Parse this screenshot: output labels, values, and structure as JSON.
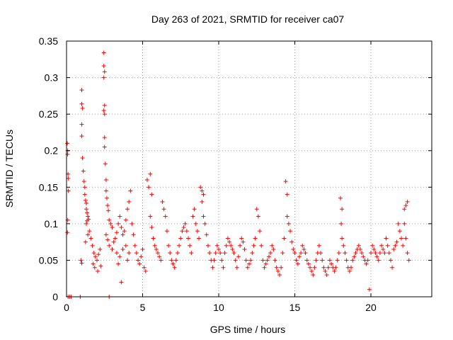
{
  "chart_data": {
    "type": "scatter",
    "title": "Day 263 of 2021, SRMTID for receiver ca07",
    "xlabel": "GPS time / hours",
    "ylabel": "SRMTID / TECUs",
    "xlim": [
      0,
      24
    ],
    "ylim": [
      0,
      0.35
    ],
    "grid": true,
    "marker": "+",
    "color": "#ff0000",
    "xticks": [
      0,
      5,
      10,
      15,
      20
    ],
    "xtick_labels": [
      "0",
      "5",
      "10",
      "15",
      "20"
    ],
    "yticks": [
      0,
      0.05,
      0.1,
      0.15,
      0.2,
      0.25,
      0.3,
      0.35
    ],
    "ytick_labels": [
      "0",
      "0.05",
      "0.1",
      "0.15",
      "0.2",
      "0.25",
      "0.3",
      "0.35"
    ],
    "series": [
      {
        "name": "SRMTID",
        "points": [
          [
            0.05,
            0.21
          ],
          [
            0.07,
            0.195
          ],
          [
            0.08,
            0.2
          ],
          [
            0.1,
            0.168
          ],
          [
            0.11,
            0.162
          ],
          [
            0.12,
            0.145
          ],
          [
            0.08,
            0.105
          ],
          [
            0.06,
            0.088
          ],
          [
            0.1,
            0.0
          ],
          [
            0.2,
            0.0
          ],
          [
            0.3,
            0.0
          ],
          [
            0.9,
            0.0
          ],
          [
            2.8,
            0.0
          ],
          [
            1.0,
            0.283
          ],
          [
            1.0,
            0.264
          ],
          [
            1.05,
            0.258
          ],
          [
            1.0,
            0.236
          ],
          [
            1.0,
            0.22
          ],
          [
            1.05,
            0.19
          ],
          [
            1.1,
            0.172
          ],
          [
            1.15,
            0.158
          ],
          [
            1.2,
            0.15
          ],
          [
            1.2,
            0.14
          ],
          [
            1.25,
            0.132
          ],
          [
            1.3,
            0.128
          ],
          [
            1.3,
            0.12
          ],
          [
            1.35,
            0.115
          ],
          [
            1.4,
            0.11
          ],
          [
            1.45,
            0.106
          ],
          [
            1.3,
            0.1
          ],
          [
            1.35,
            0.104
          ],
          [
            1.5,
            0.09
          ],
          [
            1.4,
            0.085
          ],
          [
            1.25,
            0.075
          ],
          [
            0.95,
            0.05
          ],
          [
            1.0,
            0.046
          ],
          [
            1.6,
            0.08
          ],
          [
            1.7,
            0.07
          ],
          [
            1.8,
            0.06
          ],
          [
            1.9,
            0.055
          ],
          [
            2.0,
            0.05
          ],
          [
            2.1,
            0.058
          ],
          [
            2.2,
            0.065
          ],
          [
            1.75,
            0.045
          ],
          [
            1.85,
            0.04
          ],
          [
            2.05,
            0.035
          ],
          [
            2.25,
            0.042
          ],
          [
            2.45,
            0.334
          ],
          [
            2.45,
            0.316
          ],
          [
            2.5,
            0.308
          ],
          [
            2.45,
            0.3
          ],
          [
            2.5,
            0.262
          ],
          [
            2.45,
            0.255
          ],
          [
            2.5,
            0.25
          ],
          [
            2.5,
            0.218
          ],
          [
            2.5,
            0.205
          ],
          [
            2.55,
            0.182
          ],
          [
            2.6,
            0.16
          ],
          [
            2.6,
            0.145
          ],
          [
            2.65,
            0.135
          ],
          [
            2.7,
            0.125
          ],
          [
            2.75,
            0.118
          ],
          [
            2.8,
            0.105
          ],
          [
            2.9,
            0.1
          ],
          [
            3.0,
            0.095
          ],
          [
            2.6,
            0.085
          ],
          [
            2.7,
            0.078
          ],
          [
            2.8,
            0.07
          ],
          [
            3.0,
            0.065
          ],
          [
            3.1,
            0.075
          ],
          [
            3.2,
            0.08
          ],
          [
            3.3,
            0.088
          ],
          [
            3.4,
            0.1
          ],
          [
            3.5,
            0.11
          ],
          [
            3.6,
            0.095
          ],
          [
            3.7,
            0.085
          ],
          [
            3.8,
            0.09
          ],
          [
            3.9,
            0.105
          ],
          [
            4.0,
            0.12
          ],
          [
            4.1,
            0.13
          ],
          [
            4.2,
            0.145
          ],
          [
            4.3,
            0.1
          ],
          [
            4.4,
            0.085
          ],
          [
            4.5,
            0.07
          ],
          [
            3.3,
            0.06
          ],
          [
            3.5,
            0.055
          ],
          [
            3.7,
            0.065
          ],
          [
            3.9,
            0.07
          ],
          [
            4.1,
            0.06
          ],
          [
            3.6,
            0.02
          ],
          [
            3.4,
            0.045
          ],
          [
            4.0,
            0.05
          ],
          [
            4.6,
            0.06
          ],
          [
            4.7,
            0.05
          ],
          [
            4.8,
            0.045
          ],
          [
            4.9,
            0.055
          ],
          [
            5.0,
            0.065
          ],
          [
            5.1,
            0.04
          ],
          [
            5.2,
            0.035
          ],
          [
            5.3,
            0.16
          ],
          [
            5.5,
            0.168
          ],
          [
            5.4,
            0.15
          ],
          [
            5.6,
            0.14
          ],
          [
            5.5,
            0.11
          ],
          [
            5.6,
            0.095
          ],
          [
            5.7,
            0.08
          ],
          [
            5.8,
            0.07
          ],
          [
            5.9,
            0.065
          ],
          [
            6.0,
            0.06
          ],
          [
            6.1,
            0.055
          ],
          [
            6.2,
            0.05
          ],
          [
            6.3,
            0.13
          ],
          [
            6.4,
            0.12
          ],
          [
            6.5,
            0.11
          ],
          [
            6.6,
            0.09
          ],
          [
            6.7,
            0.07
          ],
          [
            6.8,
            0.06
          ],
          [
            6.9,
            0.05
          ],
          [
            7.0,
            0.045
          ],
          [
            7.1,
            0.04
          ],
          [
            7.2,
            0.05
          ],
          [
            7.3,
            0.06
          ],
          [
            7.4,
            0.07
          ],
          [
            7.5,
            0.08
          ],
          [
            7.6,
            0.09
          ],
          [
            7.7,
            0.095
          ],
          [
            7.8,
            0.1
          ],
          [
            7.9,
            0.09
          ],
          [
            8.0,
            0.08
          ],
          [
            8.1,
            0.07
          ],
          [
            8.2,
            0.06
          ],
          [
            8.3,
            0.11
          ],
          [
            8.4,
            0.12
          ],
          [
            8.5,
            0.1
          ],
          [
            8.6,
            0.09
          ],
          [
            8.7,
            0.08
          ],
          [
            8.8,
            0.15
          ],
          [
            8.9,
            0.145
          ],
          [
            9.0,
            0.14
          ],
          [
            8.9,
            0.13
          ],
          [
            9.0,
            0.11
          ],
          [
            9.1,
            0.1
          ],
          [
            9.2,
            0.085
          ],
          [
            9.3,
            0.07
          ],
          [
            9.4,
            0.06
          ],
          [
            9.5,
            0.05
          ],
          [
            9.6,
            0.04
          ],
          [
            9.7,
            0.05
          ],
          [
            9.8,
            0.06
          ],
          [
            9.9,
            0.07
          ],
          [
            10.0,
            0.065
          ],
          [
            10.1,
            0.06
          ],
          [
            10.2,
            0.05
          ],
          [
            10.3,
            0.04
          ],
          [
            10.4,
            0.06
          ],
          [
            10.5,
            0.07
          ],
          [
            10.6,
            0.08
          ],
          [
            10.7,
            0.075
          ],
          [
            10.8,
            0.07
          ],
          [
            10.9,
            0.065
          ],
          [
            11.0,
            0.06
          ],
          [
            11.1,
            0.05
          ],
          [
            11.2,
            0.04
          ],
          [
            11.3,
            0.055
          ],
          [
            11.4,
            0.07
          ],
          [
            11.5,
            0.08
          ],
          [
            11.6,
            0.075
          ],
          [
            11.7,
            0.065
          ],
          [
            11.8,
            0.05
          ],
          [
            11.9,
            0.04
          ],
          [
            12.0,
            0.045
          ],
          [
            12.1,
            0.05
          ],
          [
            12.2,
            0.06
          ],
          [
            12.3,
            0.07
          ],
          [
            12.4,
            0.08
          ],
          [
            12.5,
            0.12
          ],
          [
            12.6,
            0.11
          ],
          [
            12.7,
            0.09
          ],
          [
            12.8,
            0.07
          ],
          [
            12.9,
            0.05
          ],
          [
            13.0,
            0.04
          ],
          [
            13.1,
            0.045
          ],
          [
            13.2,
            0.05
          ],
          [
            13.3,
            0.055
          ],
          [
            13.4,
            0.06
          ],
          [
            13.5,
            0.07
          ],
          [
            13.6,
            0.065
          ],
          [
            13.7,
            0.05
          ],
          [
            13.8,
            0.04
          ],
          [
            13.9,
            0.035
          ],
          [
            14.0,
            0.03
          ],
          [
            14.1,
            0.04
          ],
          [
            14.2,
            0.06
          ],
          [
            14.3,
            0.08
          ],
          [
            14.4,
            0.158
          ],
          [
            14.5,
            0.14
          ],
          [
            14.5,
            0.11
          ],
          [
            14.6,
            0.1
          ],
          [
            14.7,
            0.09
          ],
          [
            14.8,
            0.075
          ],
          [
            14.9,
            0.065
          ],
          [
            15.0,
            0.06
          ],
          [
            15.1,
            0.05
          ],
          [
            15.2,
            0.045
          ],
          [
            15.3,
            0.055
          ],
          [
            15.4,
            0.06
          ],
          [
            15.5,
            0.07
          ],
          [
            15.6,
            0.065
          ],
          [
            15.7,
            0.06
          ],
          [
            15.8,
            0.05
          ],
          [
            15.9,
            0.045
          ],
          [
            16.0,
            0.04
          ],
          [
            16.1,
            0.035
          ],
          [
            16.2,
            0.03
          ],
          [
            16.3,
            0.04
          ],
          [
            16.4,
            0.05
          ],
          [
            16.5,
            0.06
          ],
          [
            16.6,
            0.07
          ],
          [
            16.7,
            0.06
          ],
          [
            16.8,
            0.05
          ],
          [
            16.9,
            0.04
          ],
          [
            17.0,
            0.035
          ],
          [
            17.1,
            0.03
          ],
          [
            17.2,
            0.04
          ],
          [
            17.3,
            0.05
          ],
          [
            17.4,
            0.045
          ],
          [
            17.5,
            0.04
          ],
          [
            17.6,
            0.035
          ],
          [
            17.7,
            0.04
          ],
          [
            17.8,
            0.05
          ],
          [
            17.9,
            0.06
          ],
          [
            18.0,
            0.135
          ],
          [
            18.1,
            0.12
          ],
          [
            18.05,
            0.1
          ],
          [
            18.1,
            0.08
          ],
          [
            18.2,
            0.07
          ],
          [
            18.3,
            0.06
          ],
          [
            18.4,
            0.05
          ],
          [
            18.5,
            0.04
          ],
          [
            18.6,
            0.035
          ],
          [
            18.7,
            0.04
          ],
          [
            18.8,
            0.05
          ],
          [
            18.9,
            0.055
          ],
          [
            19.0,
            0.06
          ],
          [
            19.1,
            0.065
          ],
          [
            19.2,
            0.07
          ],
          [
            19.3,
            0.065
          ],
          [
            19.4,
            0.06
          ],
          [
            19.5,
            0.055
          ],
          [
            19.6,
            0.05
          ],
          [
            19.7,
            0.045
          ],
          [
            19.8,
            0.05
          ],
          [
            19.9,
            0.01
          ],
          [
            20.0,
            0.06
          ],
          [
            20.1,
            0.07
          ],
          [
            20.2,
            0.065
          ],
          [
            20.3,
            0.06
          ],
          [
            20.4,
            0.055
          ],
          [
            20.5,
            0.05
          ],
          [
            20.6,
            0.06
          ],
          [
            20.7,
            0.07
          ],
          [
            20.8,
            0.065
          ],
          [
            20.9,
            0.06
          ],
          [
            21.0,
            0.08
          ],
          [
            21.1,
            0.07
          ],
          [
            21.2,
            0.06
          ],
          [
            21.3,
            0.05
          ],
          [
            21.4,
            0.04
          ],
          [
            21.5,
            0.065
          ],
          [
            21.6,
            0.07
          ],
          [
            21.7,
            0.075
          ],
          [
            21.8,
            0.1
          ],
          [
            21.9,
            0.09
          ],
          [
            22.0,
            0.08
          ],
          [
            22.1,
            0.07
          ],
          [
            22.2,
            0.12
          ],
          [
            22.3,
            0.125
          ],
          [
            22.4,
            0.13
          ],
          [
            22.2,
            0.1
          ],
          [
            22.3,
            0.08
          ],
          [
            22.4,
            0.06
          ],
          [
            22.5,
            0.05
          ]
        ]
      }
    ]
  }
}
